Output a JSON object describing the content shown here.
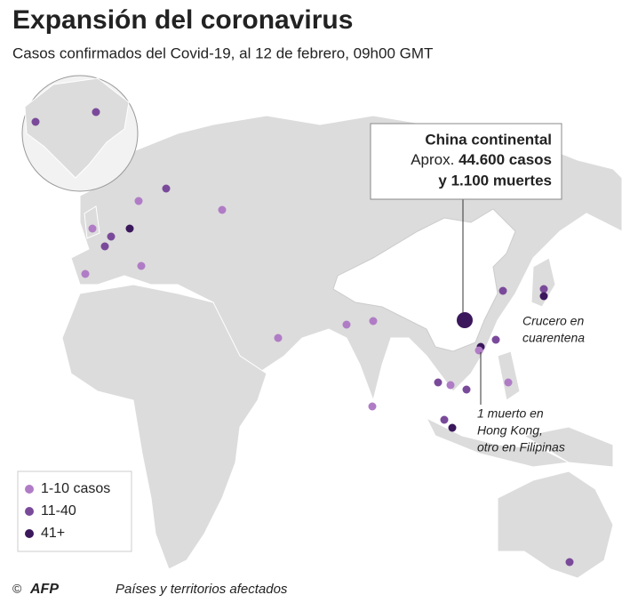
{
  "header": {
    "title": "Expansión del coronavirus",
    "subtitle": "Casos confirmados del Covid-19, al 12 de febrero, 09h00 GMT"
  },
  "callout": {
    "line1": "China continental",
    "prefix": "Aprox.",
    "cases": "44.600 casos",
    "deaths": "y 1.100 muertes"
  },
  "annotations": {
    "cruise": [
      "Crucero en",
      "cuarentena"
    ],
    "hongkong": [
      "1 muerto en",
      "Hong Kong,",
      "otro en Filipinas"
    ]
  },
  "legend": {
    "items": [
      {
        "label": "1-10 casos",
        "color": "#b07cc6"
      },
      {
        "label": "11-40",
        "color": "#7a4a9a"
      },
      {
        "label": "41+",
        "color": "#3b175c"
      }
    ]
  },
  "footer": {
    "copyright": "©",
    "agency": "AFP",
    "note": "Países y territorios afectados"
  }
}
